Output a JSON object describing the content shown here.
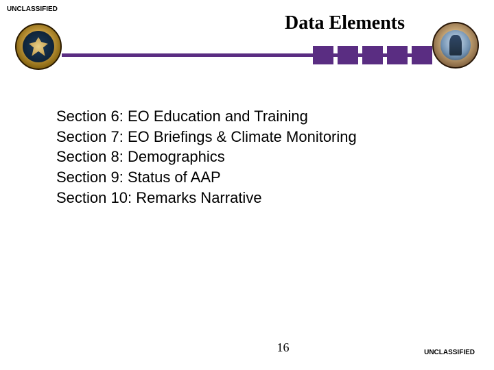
{
  "classification": {
    "top": "UNCLASSIFIED",
    "bottom": "UNCLASSIFIED"
  },
  "title": "Data Elements",
  "accent_color": "#5a2d82",
  "header_blocks_count": 5,
  "sections": [
    "Section 6: EO Education and Training",
    "Section 7: EO Briefings & Climate Monitoring",
    "Section 8: Demographics",
    "Section 9: Status of AAP",
    "Section 10: Remarks Narrative"
  ],
  "page_number": "16",
  "seals": {
    "left_name": "ngb-seal",
    "right_name": "national-guard-seal"
  }
}
